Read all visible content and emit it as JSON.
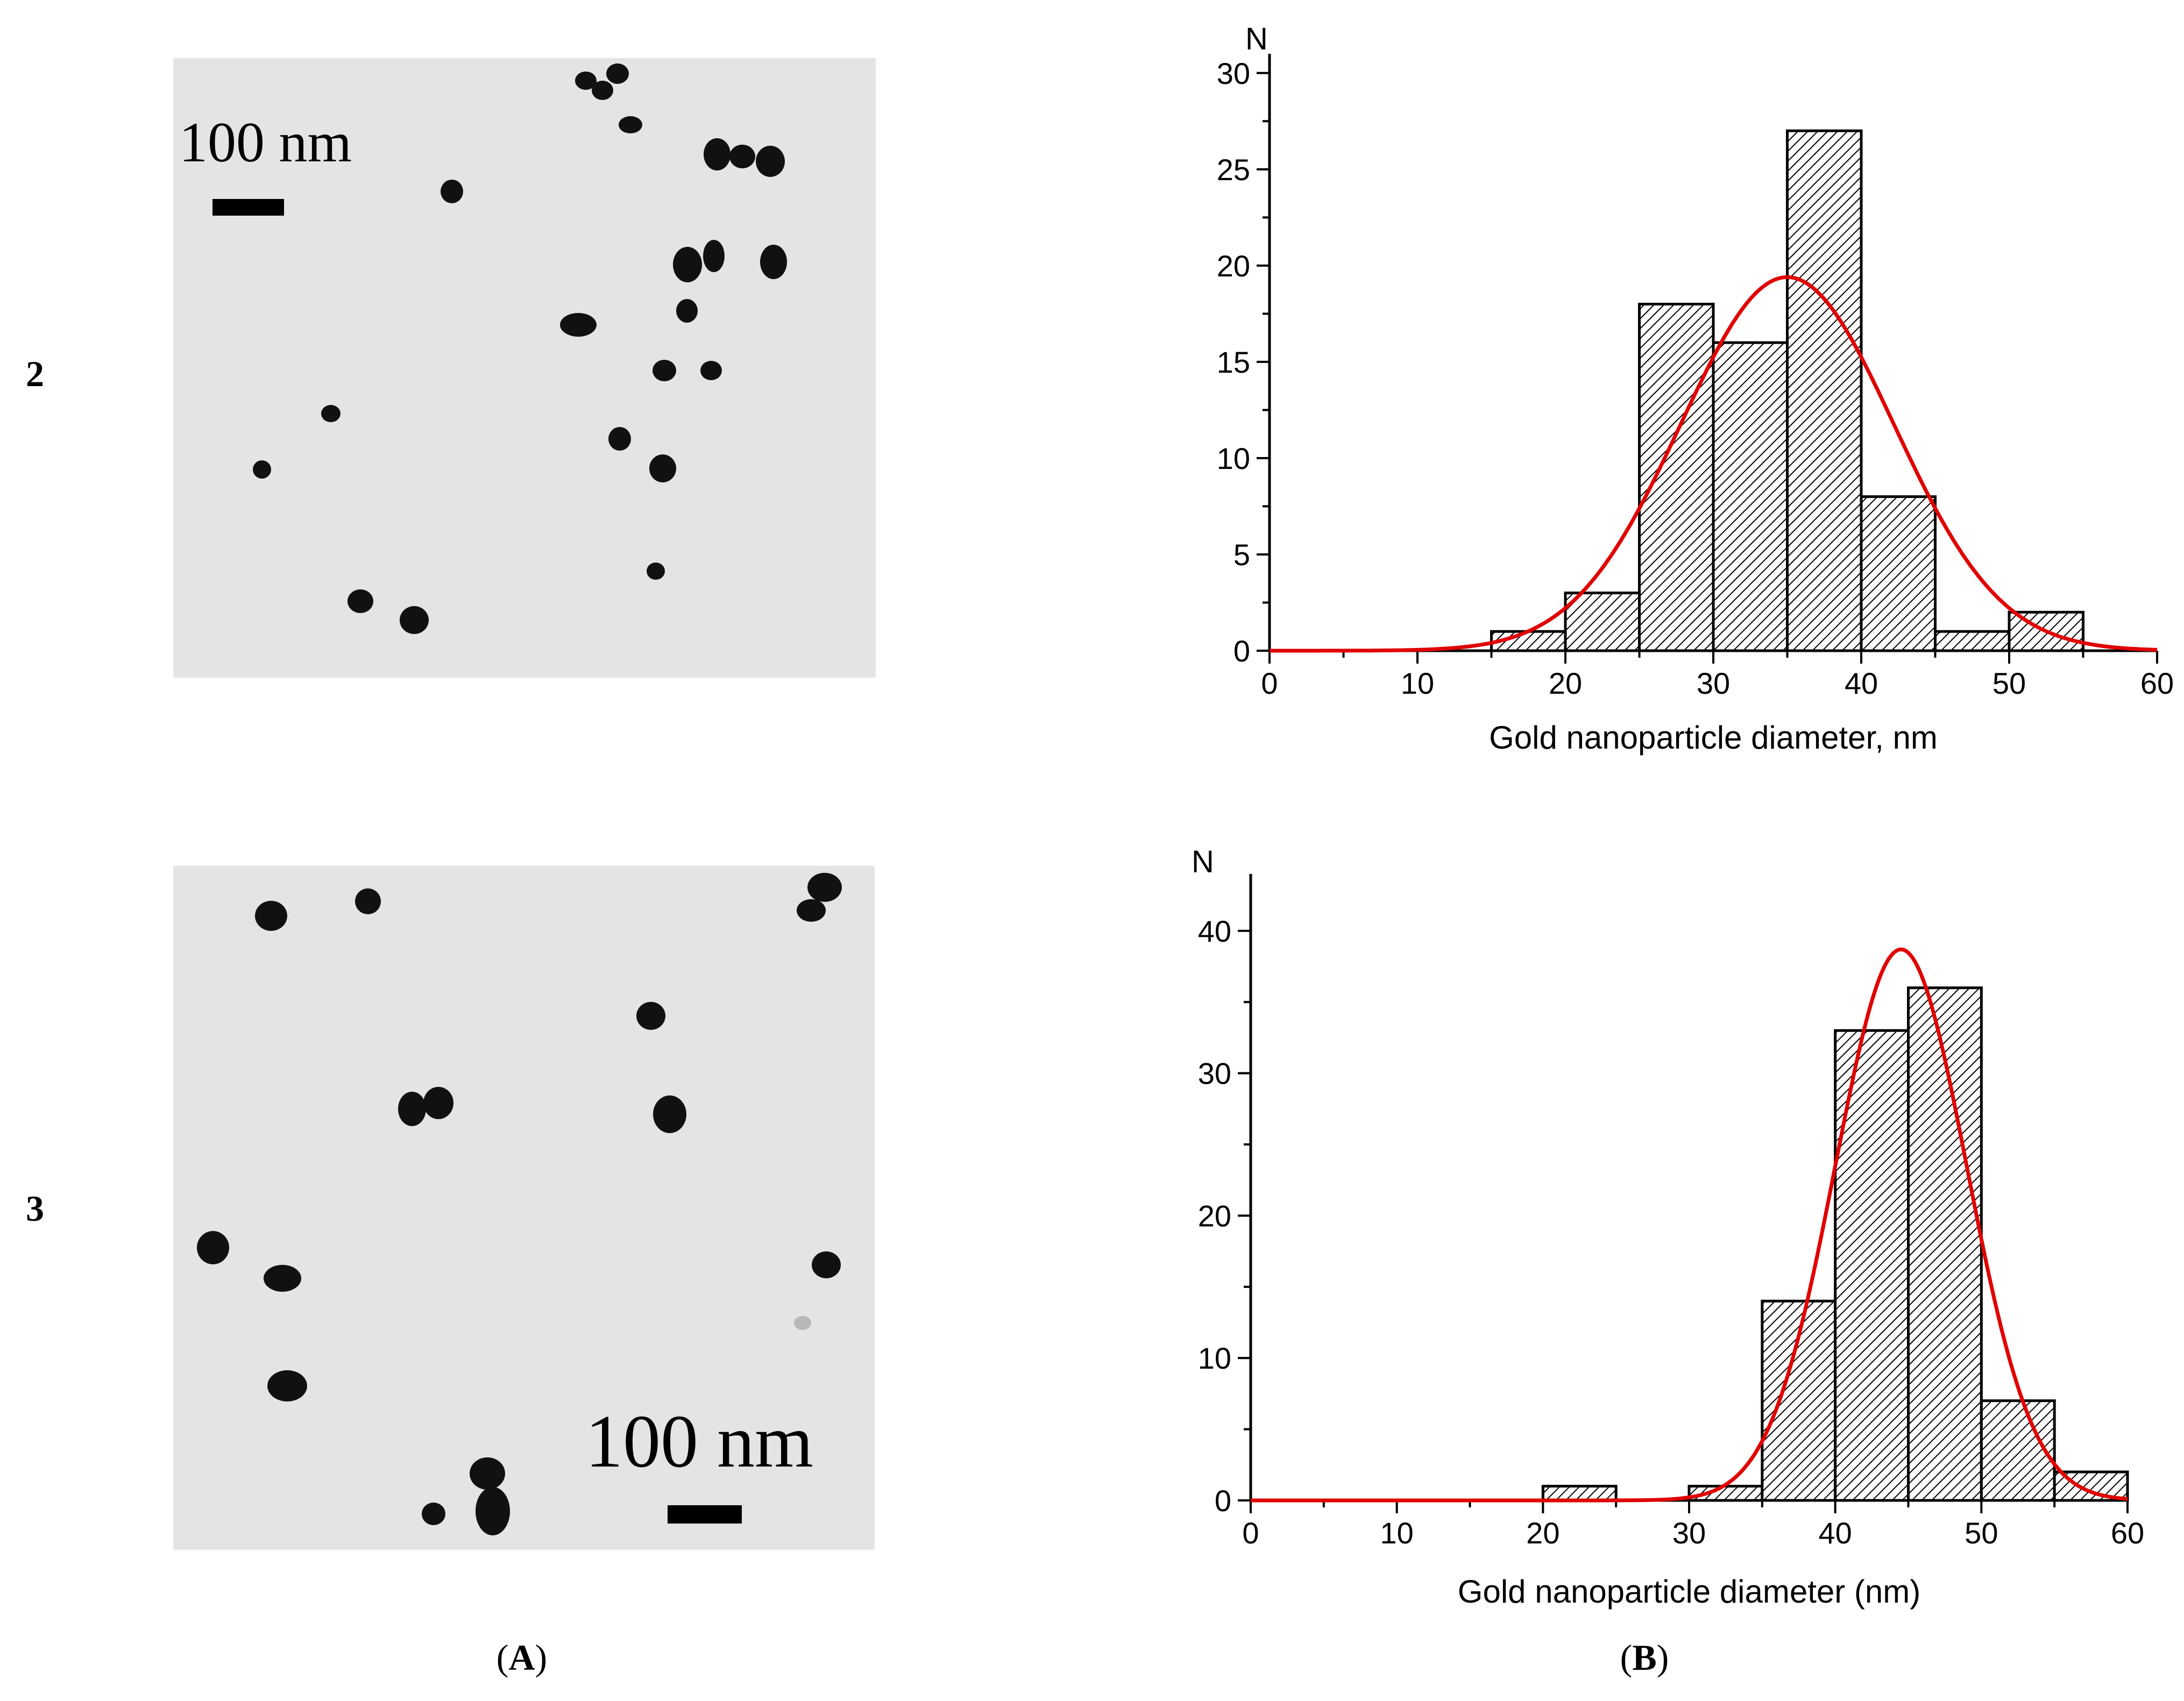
{
  "figure": {
    "row_labels": [
      "2",
      "3"
    ],
    "panel_labels": [
      {
        "open": "(",
        "letter": "A",
        "close": ")"
      },
      {
        "open": "(",
        "letter": "B",
        "close": ")"
      }
    ],
    "micrographs": [
      {
        "scale_bar_label": "100 nm"
      },
      {
        "scale_bar_label": "100 nm"
      }
    ]
  },
  "colors": {
    "fit_curve": "#e00000",
    "bar_edge": "#000000",
    "micrograph_bg": "#e4e4e4",
    "particle": "#111111"
  },
  "chart_data": [
    {
      "type": "bar",
      "title": "",
      "xlabel": "Gold nanoparticle diameter, nm",
      "ylabel": "N",
      "xlim": [
        0,
        60
      ],
      "ylim": [
        0,
        31
      ],
      "xticks": [
        0,
        10,
        20,
        30,
        40,
        50,
        60
      ],
      "yticks": [
        0,
        5,
        10,
        15,
        20,
        25,
        30
      ],
      "bin_edges": [
        15,
        20,
        25,
        30,
        35,
        40,
        45,
        50,
        55
      ],
      "values": [
        1,
        3,
        18,
        16,
        27,
        8,
        1,
        2
      ],
      "fill": "hatched",
      "fit": {
        "type": "gaussian",
        "mean": 35,
        "sigma": 7.2,
        "peak": 19.4
      }
    },
    {
      "type": "bar",
      "title": "",
      "xlabel": "Gold nanoparticle diameter (nm)",
      "ylabel": "N",
      "xlim": [
        0,
        60
      ],
      "ylim": [
        0,
        44
      ],
      "xticks": [
        0,
        10,
        20,
        30,
        40,
        50,
        60
      ],
      "yticks": [
        0,
        10,
        20,
        30,
        40
      ],
      "bin_edges": [
        20,
        25,
        30,
        35,
        40,
        45,
        50,
        55,
        60
      ],
      "values": [
        1,
        0,
        1,
        14,
        33,
        36,
        7,
        2
      ],
      "fill": "hatched",
      "fit": {
        "type": "gaussian",
        "mean": 44.5,
        "sigma": 4.5,
        "peak": 38.7
      }
    }
  ]
}
